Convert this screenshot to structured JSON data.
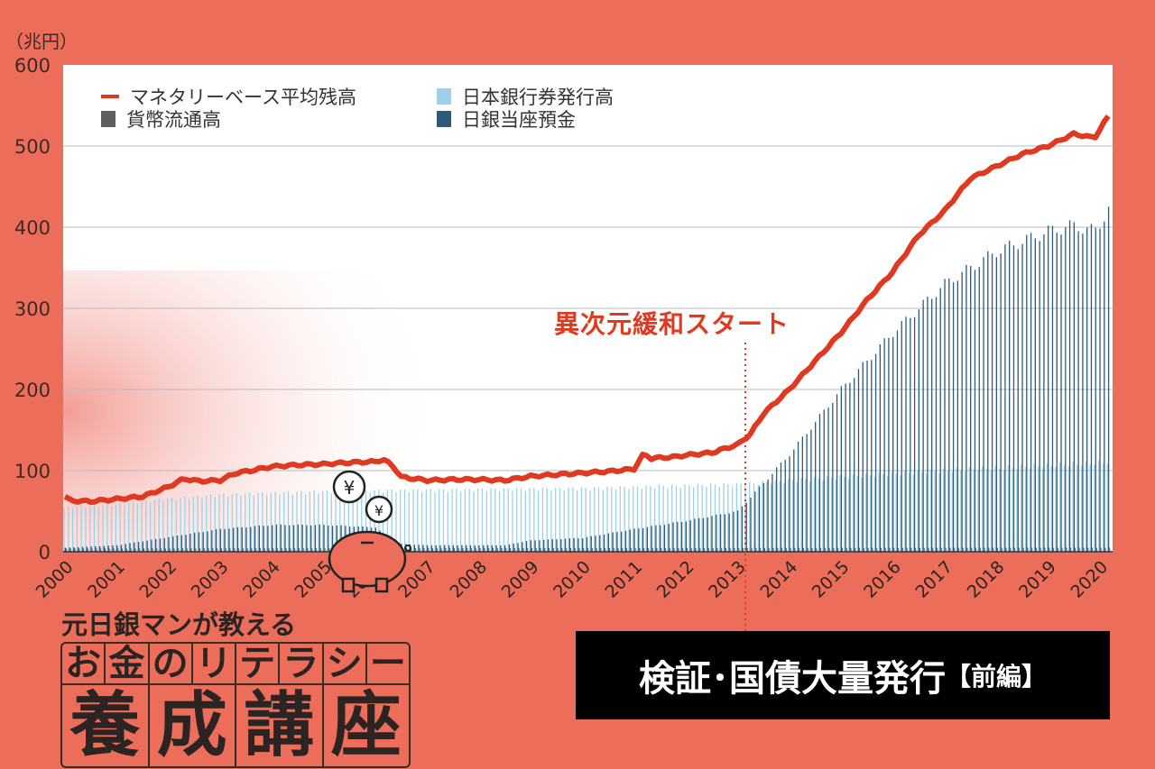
{
  "chart_data": {
    "type": "bar+line",
    "unit_label": "（兆円）",
    "ylim": [
      0,
      600
    ],
    "yticks": [
      "0",
      "100",
      "200",
      "300",
      "400",
      "500",
      "600"
    ],
    "xlim": [
      2000,
      2020.25
    ],
    "xticks": [
      "2000",
      "2001",
      "2002",
      "2003",
      "2004",
      "2005",
      "2006",
      "2007",
      "2008",
      "2009",
      "2010",
      "2011",
      "2012",
      "2013",
      "2014",
      "2015",
      "2016",
      "2017",
      "2018",
      "2019",
      "2020"
    ],
    "grid": true,
    "legend_position": "top-left",
    "series": [
      {
        "name": "マネタリーベース平均残高",
        "kind": "line",
        "color": "#DE3A22",
        "points": [
          [
            2000,
            68
          ],
          [
            2000.1,
            63
          ],
          [
            2000.5,
            62
          ],
          [
            2001,
            65
          ],
          [
            2001.5,
            68
          ],
          [
            2002,
            80
          ],
          [
            2002.3,
            90
          ],
          [
            2002.6,
            87
          ],
          [
            2003,
            88
          ],
          [
            2003.3,
            97
          ],
          [
            2003.6,
            100
          ],
          [
            2004,
            105
          ],
          [
            2004.5,
            107
          ],
          [
            2005,
            108
          ],
          [
            2005.5,
            110
          ],
          [
            2006,
            111
          ],
          [
            2006.15,
            114
          ],
          [
            2006.35,
            105
          ],
          [
            2006.5,
            92
          ],
          [
            2007,
            88
          ],
          [
            2007.5,
            89
          ],
          [
            2008,
            89
          ],
          [
            2008.5,
            88
          ],
          [
            2009,
            93
          ],
          [
            2009.5,
            95
          ],
          [
            2010,
            97
          ],
          [
            2010.5,
            99
          ],
          [
            2011,
            102
          ],
          [
            2011.2,
            122
          ],
          [
            2011.3,
            115
          ],
          [
            2011.8,
            117
          ],
          [
            2012,
            119
          ],
          [
            2012.5,
            122
          ],
          [
            2013,
            132
          ],
          [
            2013.25,
            145
          ],
          [
            2013.5,
            170
          ],
          [
            2013.75,
            185
          ],
          [
            2014,
            200
          ],
          [
            2014.5,
            235
          ],
          [
            2015,
            270
          ],
          [
            2015.5,
            310
          ],
          [
            2016,
            345
          ],
          [
            2016.5,
            390
          ],
          [
            2017,
            420
          ],
          [
            2017.5,
            460
          ],
          [
            2018,
            475
          ],
          [
            2018.5,
            490
          ],
          [
            2019,
            500
          ],
          [
            2019.5,
            515
          ],
          [
            2019.9,
            510
          ],
          [
            2020.05,
            525
          ],
          [
            2020.2,
            540
          ]
        ]
      },
      {
        "name": "日本銀行券発行高",
        "kind": "bar",
        "color": "#9FD0E6",
        "points": [
          [
            2000,
            55
          ],
          [
            2001,
            58
          ],
          [
            2002,
            65
          ],
          [
            2003,
            70
          ],
          [
            2005,
            74
          ],
          [
            2007,
            76
          ],
          [
            2010,
            78
          ],
          [
            2013,
            83
          ],
          [
            2015,
            92
          ],
          [
            2017,
            100
          ],
          [
            2019,
            106
          ],
          [
            2020.2,
            110
          ]
        ]
      },
      {
        "name": "貨幣流通高",
        "kind": "bar",
        "color": "#5F5F5F",
        "points": [
          [
            2000,
            4
          ],
          [
            2020.2,
            5
          ]
        ]
      },
      {
        "name": "日銀当座預金",
        "kind": "bar",
        "color": "#2C5A78",
        "points": [
          [
            2000,
            5
          ],
          [
            2001,
            8
          ],
          [
            2002,
            18
          ],
          [
            2003,
            28
          ],
          [
            2004,
            33
          ],
          [
            2005,
            33
          ],
          [
            2006,
            30
          ],
          [
            2006.4,
            10
          ],
          [
            2007,
            8
          ],
          [
            2008.5,
            8
          ],
          [
            2009,
            14
          ],
          [
            2010,
            17
          ],
          [
            2011,
            28
          ],
          [
            2012,
            38
          ],
          [
            2013,
            50
          ],
          [
            2013.5,
            85
          ],
          [
            2014,
            120
          ],
          [
            2015,
            200
          ],
          [
            2016,
            270
          ],
          [
            2017,
            330
          ],
          [
            2018,
            370
          ],
          [
            2018.6,
            385
          ],
          [
            2019,
            395
          ],
          [
            2019.5,
            402
          ],
          [
            2019.9,
            395
          ],
          [
            2020.2,
            425
          ]
        ]
      }
    ],
    "annotations": [
      {
        "text": "異次元緩和スタート",
        "x": 2013.0
      }
    ]
  },
  "logo": {
    "subtitle": "元日銀マンが教える",
    "row1": [
      "お",
      "金",
      "の",
      "リ",
      "テ",
      "ラ",
      "シ",
      "ー"
    ],
    "row2": [
      "養",
      "成",
      "講",
      "座"
    ],
    "coin_symbol": "¥"
  },
  "title": {
    "main": "検証･国債大量発行",
    "sub": "【前編】"
  }
}
